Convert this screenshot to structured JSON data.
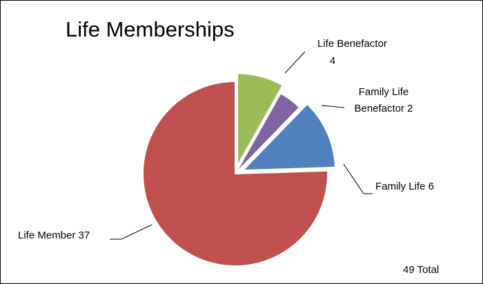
{
  "chart_data": {
    "type": "pie",
    "title": "Life Memberships",
    "total_label": "49 Total",
    "slices": [
      {
        "name": "Life Benefactor",
        "value": 4,
        "label_lines": [
          "Life Benefactor",
          "4"
        ],
        "color": "#9bbb59",
        "exploded": true
      },
      {
        "name": "Family Life Benefactor",
        "value": 2,
        "label_lines": [
          "Family Life",
          "Benefactor 2"
        ],
        "color": "#8064a2",
        "exploded": false
      },
      {
        "name": "Family Life",
        "value": 6,
        "label_lines": [
          "Family Life 6"
        ],
        "color": "#4f81bd",
        "exploded": true
      },
      {
        "name": "Life Member",
        "value": 37,
        "label_lines": [
          "Life Member 37"
        ],
        "color": "#c0504d",
        "exploded": false
      }
    ]
  }
}
